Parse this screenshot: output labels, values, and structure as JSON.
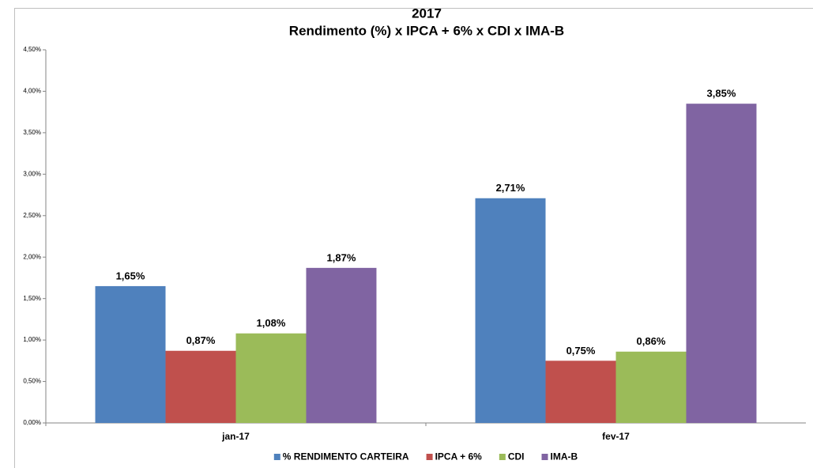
{
  "chart_data": {
    "type": "bar",
    "title": "2017",
    "subtitle": "Rendimento (%) x IPCA + 6%  x CDI x IMA-B",
    "categories": [
      "jan-17",
      "fev-17"
    ],
    "series": [
      {
        "name": "% RENDIMENTO CARTEIRA",
        "color": "#4f81bd",
        "values": [
          1.65,
          2.71
        ],
        "value_labels": [
          "1,65%",
          "2,71%"
        ]
      },
      {
        "name": "IPCA + 6%",
        "color": "#c0504d",
        "values": [
          0.87,
          0.75
        ],
        "value_labels": [
          "0,87%",
          "0,75%"
        ]
      },
      {
        "name": "CDI",
        "color": "#9bbb59",
        "values": [
          1.08,
          0.86
        ],
        "value_labels": [
          "1,08%",
          "0,86%"
        ]
      },
      {
        "name": "IMA-B",
        "color": "#8064a2",
        "values": [
          1.87,
          3.85
        ],
        "value_labels": [
          "1,87%",
          "3,85%"
        ]
      }
    ],
    "ylim": [
      0,
      4.5
    ],
    "yticks": [
      {
        "value": 0,
        "label": "0,00%"
      },
      {
        "value": 0.5,
        "label": "0,50%"
      },
      {
        "value": 1,
        "label": "1,00%"
      },
      {
        "value": 1.5,
        "label": "1,50%"
      },
      {
        "value": 2,
        "label": "2,00%"
      },
      {
        "value": 2.5,
        "label": "2,50%"
      },
      {
        "value": 3,
        "label": "3,00%"
      },
      {
        "value": 3.5,
        "label": "3,50%"
      },
      {
        "value": 4,
        "label": "4,00%"
      },
      {
        "value": 4.5,
        "label": "4,50%"
      }
    ],
    "grid": false,
    "legend": "bottom"
  }
}
